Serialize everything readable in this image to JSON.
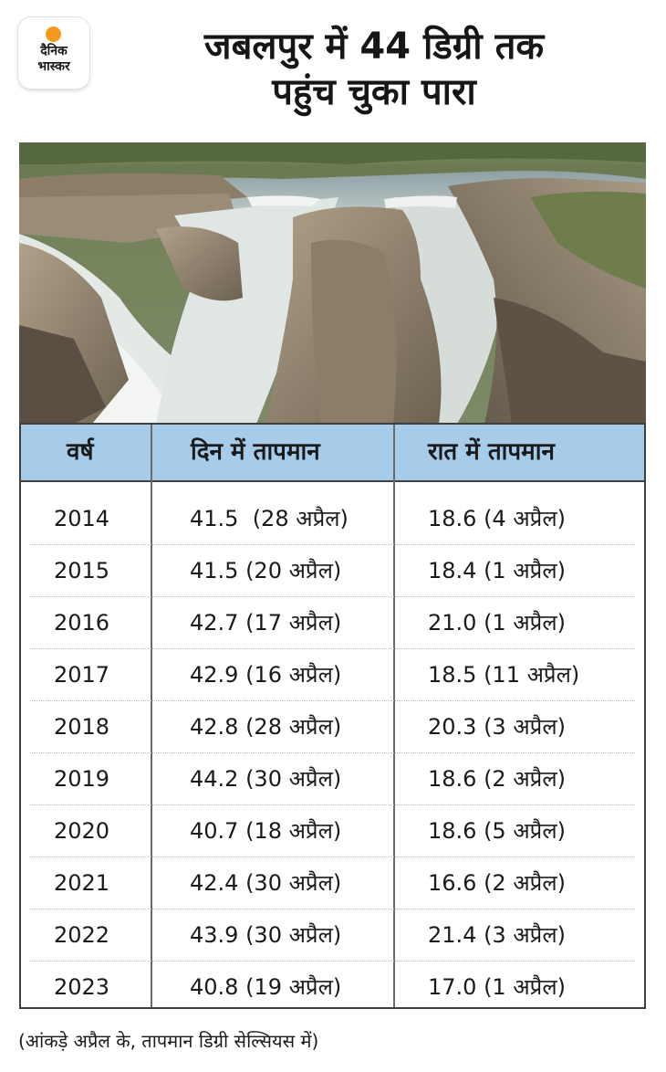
{
  "brand": {
    "line1": "दैनिक",
    "line2": "भास्कर"
  },
  "title": {
    "line1": "जबलपुर में 44 डिग्री तक",
    "line2": "पहुंच चुका पारा"
  },
  "table": {
    "headers": [
      "वर्ष",
      "दिन में तापमान",
      "रात में तापमान"
    ],
    "rows": [
      [
        "2014",
        "41.5  (28 अप्रैल)",
        "18.6 (4 अप्रैल)"
      ],
      [
        "2015",
        "41.5 (20 अप्रैल)",
        "18.4 (1 अप्रैल)"
      ],
      [
        "2016",
        "42.7 (17 अप्रैल)",
        "21.0 (1 अप्रैल)"
      ],
      [
        "2017",
        "42.9 (16 अप्रैल)",
        "18.5 (11 अप्रैल)"
      ],
      [
        "2018",
        "42.8 (28 अप्रैल)",
        "20.3 (3 अप्रैल)"
      ],
      [
        "2019",
        "44.2 (30 अप्रैल)",
        "18.6 (2 अप्रैल)"
      ],
      [
        "2020",
        "40.7 (18 अप्रैल)",
        "18.6 (5 अप्रैल)"
      ],
      [
        "2021",
        "42.4 (30 अप्रैल)",
        "16.6 (2 अप्रैल)"
      ],
      [
        "2022",
        "43.9 (30 अप्रैल)",
        "21.4 (3 अप्रैल)"
      ],
      [
        "2023",
        "40.8 (19 अप्रैल)",
        "17.0 (1 अप्रैल)"
      ]
    ]
  },
  "footnote": "(आंकड़े अप्रैल के, तापमान डिग्री सेल्सियस में)",
  "colors": {
    "header_bg": "#a6cce9",
    "logo_sun": "#f39a1c"
  }
}
